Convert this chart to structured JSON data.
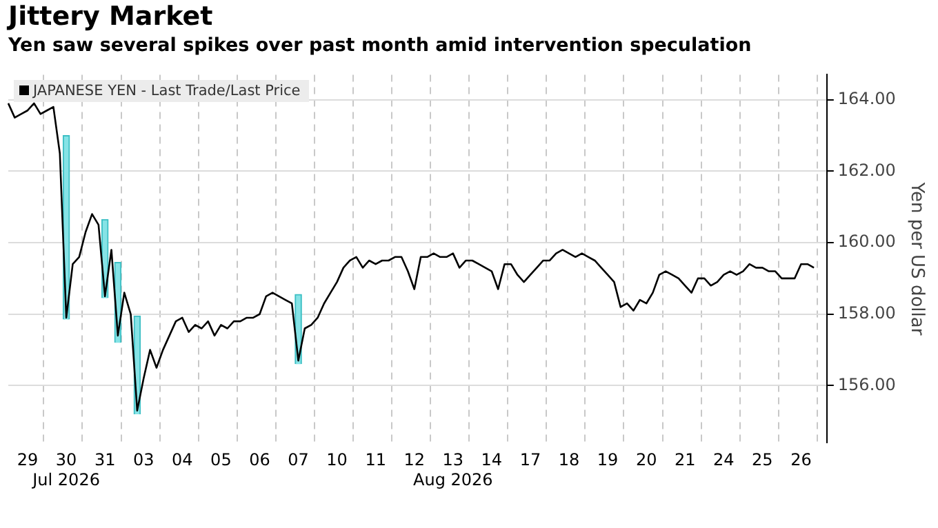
{
  "chart_data": {
    "type": "line",
    "title": "Jittery Market",
    "subtitle": "Yen saw several spikes over past month amid intervention speculation",
    "ylabel": "Yen per US dollar",
    "categories": [
      null,
      null,
      null,
      "29",
      null,
      null,
      null,
      null,
      null,
      "30\nJul 2026",
      null,
      null,
      null,
      null,
      null,
      "31",
      null,
      null,
      null,
      null,
      null,
      "03",
      null,
      null,
      null,
      null,
      null,
      "04",
      null,
      null,
      null,
      null,
      null,
      "05",
      null,
      null,
      null,
      null,
      null,
      "06",
      null,
      null,
      null,
      null,
      null,
      "07",
      null,
      null,
      null,
      null,
      null,
      "10",
      null,
      null,
      null,
      null,
      null,
      "11",
      null,
      null,
      null,
      null,
      null,
      "12",
      null,
      null,
      null,
      null,
      null,
      "13\nAug 2026",
      null,
      null,
      null,
      null,
      null,
      "14",
      null,
      null,
      null,
      null,
      null,
      "17",
      null,
      null,
      null,
      null,
      null,
      "18",
      null,
      null,
      null,
      null,
      null,
      "19",
      null,
      null,
      null,
      null,
      null,
      "20",
      null,
      null,
      null,
      null,
      null,
      "21",
      null,
      null,
      null,
      null,
      null,
      "24",
      null,
      null,
      null,
      null,
      null,
      "25",
      null,
      null,
      null,
      null,
      null,
      "26",
      null,
      null,
      null,
      null
    ],
    "series": [
      {
        "name": "JAPANESE YEN - Last Trade/Last Price",
        "color": "#000000",
        "values": [
          163.9,
          163.5,
          163.6,
          163.7,
          163.9,
          163.6,
          163.7,
          163.8,
          162.5,
          157.9,
          159.4,
          159.6,
          160.3,
          160.8,
          160.5,
          158.5,
          159.8,
          157.4,
          158.6,
          158.0,
          155.3,
          156.2,
          157.0,
          156.5,
          157.0,
          157.4,
          157.8,
          157.9,
          157.5,
          157.7,
          157.6,
          157.8,
          157.4,
          157.7,
          157.6,
          157.8,
          157.8,
          157.9,
          157.9,
          158.0,
          158.5,
          158.6,
          158.5,
          158.4,
          158.3,
          156.7,
          157.6,
          157.7,
          157.9,
          158.3,
          158.6,
          158.9,
          159.3,
          159.5,
          159.6,
          159.3,
          159.5,
          159.4,
          159.5,
          159.5,
          159.6,
          159.6,
          159.2,
          158.7,
          159.6,
          159.6,
          159.7,
          159.6,
          159.6,
          159.7,
          159.3,
          159.5,
          159.5,
          159.4,
          159.3,
          159.2,
          158.7,
          159.4,
          159.4,
          159.1,
          158.9,
          159.1,
          159.3,
          159.5,
          159.5,
          159.7,
          159.8,
          159.7,
          159.6,
          159.7,
          159.6,
          159.5,
          159.3,
          159.1,
          158.9,
          158.2,
          158.3,
          158.1,
          158.4,
          158.3,
          158.6,
          159.1,
          159.2,
          159.1,
          159.0,
          158.8,
          158.6,
          159.0,
          159.0,
          158.8,
          158.9,
          159.1,
          159.2,
          159.1,
          159.2,
          159.4,
          159.3,
          159.3,
          159.2,
          159.2,
          159.0,
          159.0,
          159.0,
          159.4,
          159.4,
          159.3,
          null,
          null
        ]
      },
      {
        "type": "bar",
        "color": "#86e3e6",
        "base": [
          null,
          null,
          null,
          null,
          null,
          null,
          null,
          null,
          null,
          157.85,
          null,
          null,
          null,
          null,
          null,
          158.45,
          null,
          157.2,
          null,
          null,
          155.2,
          null,
          null,
          null,
          null,
          null,
          null,
          null,
          null,
          null,
          null,
          null,
          null,
          null,
          null,
          null,
          null,
          null,
          null,
          null,
          null,
          null,
          null,
          null,
          null,
          156.6,
          null,
          null,
          null,
          null,
          null,
          null,
          null,
          null,
          null,
          null,
          null,
          null,
          null,
          null,
          null,
          null,
          null,
          null,
          null,
          null,
          null,
          null,
          null,
          null,
          null,
          null,
          null,
          null,
          null,
          null,
          null,
          null,
          null,
          null,
          null,
          null,
          null,
          null,
          null,
          null,
          null,
          null,
          null,
          null,
          null,
          null,
          null,
          null,
          null,
          null,
          null,
          null,
          null,
          null,
          null,
          null,
          null,
          null,
          null,
          null,
          null,
          null,
          null,
          null,
          null,
          null,
          null,
          null,
          null,
          null,
          null,
          null,
          null,
          null,
          null,
          null,
          null,
          null,
          null,
          null,
          null,
          null
        ],
        "values": [
          null,
          null,
          null,
          null,
          null,
          null,
          null,
          null,
          null,
          5.15,
          null,
          null,
          null,
          null,
          null,
          2.2,
          null,
          2.25,
          null,
          null,
          2.75,
          null,
          null,
          null,
          null,
          null,
          null,
          null,
          null,
          null,
          null,
          null,
          null,
          null,
          null,
          null,
          null,
          null,
          null,
          null,
          null,
          null,
          null,
          null,
          null,
          1.95,
          null,
          null,
          null,
          null,
          null,
          null,
          null,
          null,
          null,
          null,
          null,
          null,
          null,
          null,
          null,
          null,
          null,
          null,
          null,
          null,
          null,
          null,
          null,
          null,
          null,
          null,
          null,
          null,
          null,
          null,
          null,
          null,
          null,
          null,
          null,
          null,
          null,
          null,
          null,
          null,
          null,
          null,
          null,
          null,
          null,
          null,
          null,
          null,
          null,
          null,
          null,
          null,
          null,
          null,
          null,
          null,
          null,
          null,
          null,
          null,
          null,
          null,
          null,
          null,
          null,
          null,
          null,
          null,
          null,
          null,
          null,
          null,
          null,
          null,
          null,
          null,
          null,
          null,
          null,
          null,
          null,
          null
        ]
      }
    ],
    "ylim": [
      154.4,
      164.7
    ],
    "yticks": [
      {
        "value": 156,
        "label": "156.00"
      },
      {
        "value": 158,
        "label": "158.00"
      },
      {
        "value": 160,
        "label": "160.00"
      },
      {
        "value": 162,
        "label": "162.00"
      },
      {
        "value": 164,
        "label": "164.00"
      }
    ],
    "grid": true,
    "legend": "top left",
    "marker": "none",
    "line_style": "solid"
  }
}
